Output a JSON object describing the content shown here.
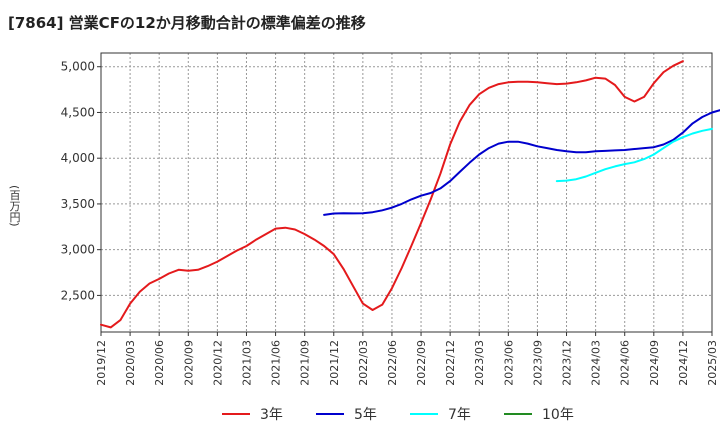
{
  "title": "[7864]  営業CFの12か月移動合計の標準偏差の推移",
  "ylabel": "(百万円)",
  "legend": [
    {
      "label": "3年",
      "color": "#e41a1c"
    },
    {
      "label": "5年",
      "color": "#0000cd"
    },
    {
      "label": "7年",
      "color": "#00ffff"
    },
    {
      "label": "10年",
      "color": "#228b22"
    }
  ],
  "chart_data": {
    "type": "line",
    "x_ticks": [
      "2019/12",
      "2020/03",
      "2020/06",
      "2020/09",
      "2020/12",
      "2021/03",
      "2021/06",
      "2021/09",
      "2021/12",
      "2022/03",
      "2022/06",
      "2022/09",
      "2022/12",
      "2023/03",
      "2023/06",
      "2023/09",
      "2023/12",
      "2024/03",
      "2024/06",
      "2024/09",
      "2024/12",
      "2025/03"
    ],
    "y_ticks": [
      2500,
      3000,
      3500,
      4000,
      4500,
      5000
    ],
    "ylim": [
      2100,
      5150
    ],
    "grid": true,
    "legend_position": "bottom",
    "series": [
      {
        "name": "3年",
        "color": "#e41a1c",
        "start": "2019/12",
        "values": [
          2180,
          2150,
          2230,
          2410,
          2540,
          2630,
          2680,
          2740,
          2780,
          2770,
          2780,
          2820,
          2870,
          2930,
          2990,
          3040,
          3110,
          3170,
          3230,
          3240,
          3220,
          3170,
          3110,
          3040,
          2950,
          2790,
          2600,
          2410,
          2340,
          2400,
          2580,
          2800,
          3040,
          3290,
          3550,
          3830,
          4150,
          4400,
          4580,
          4700,
          4770,
          4810,
          4830,
          4835,
          4835,
          4830,
          4820,
          4810,
          4815,
          4830,
          4850,
          4880,
          4870,
          4800,
          4670,
          4620,
          4670,
          4820,
          4940,
          5010,
          5060
        ]
      },
      {
        "name": "5年",
        "color": "#0000cd",
        "start": "2021/11",
        "values": [
          3380,
          3395,
          3398,
          3397,
          3398,
          3410,
          3430,
          3460,
          3500,
          3550,
          3590,
          3620,
          3670,
          3750,
          3850,
          3950,
          4040,
          4110,
          4160,
          4180,
          4180,
          4160,
          4130,
          4110,
          4090,
          4075,
          4065,
          4065,
          4075,
          4080,
          4085,
          4090,
          4100,
          4110,
          4120,
          4150,
          4200,
          4280,
          4380,
          4450,
          4500,
          4530
        ]
      },
      {
        "name": "7年",
        "color": "#00ffff",
        "start": "2023/11",
        "values": [
          3750,
          3755,
          3770,
          3800,
          3840,
          3880,
          3910,
          3935,
          3955,
          3990,
          4040,
          4110,
          4180,
          4230,
          4270,
          4300,
          4320
        ]
      },
      {
        "name": "10年",
        "color": "#228b22",
        "start": "2019/12",
        "values": []
      }
    ]
  }
}
